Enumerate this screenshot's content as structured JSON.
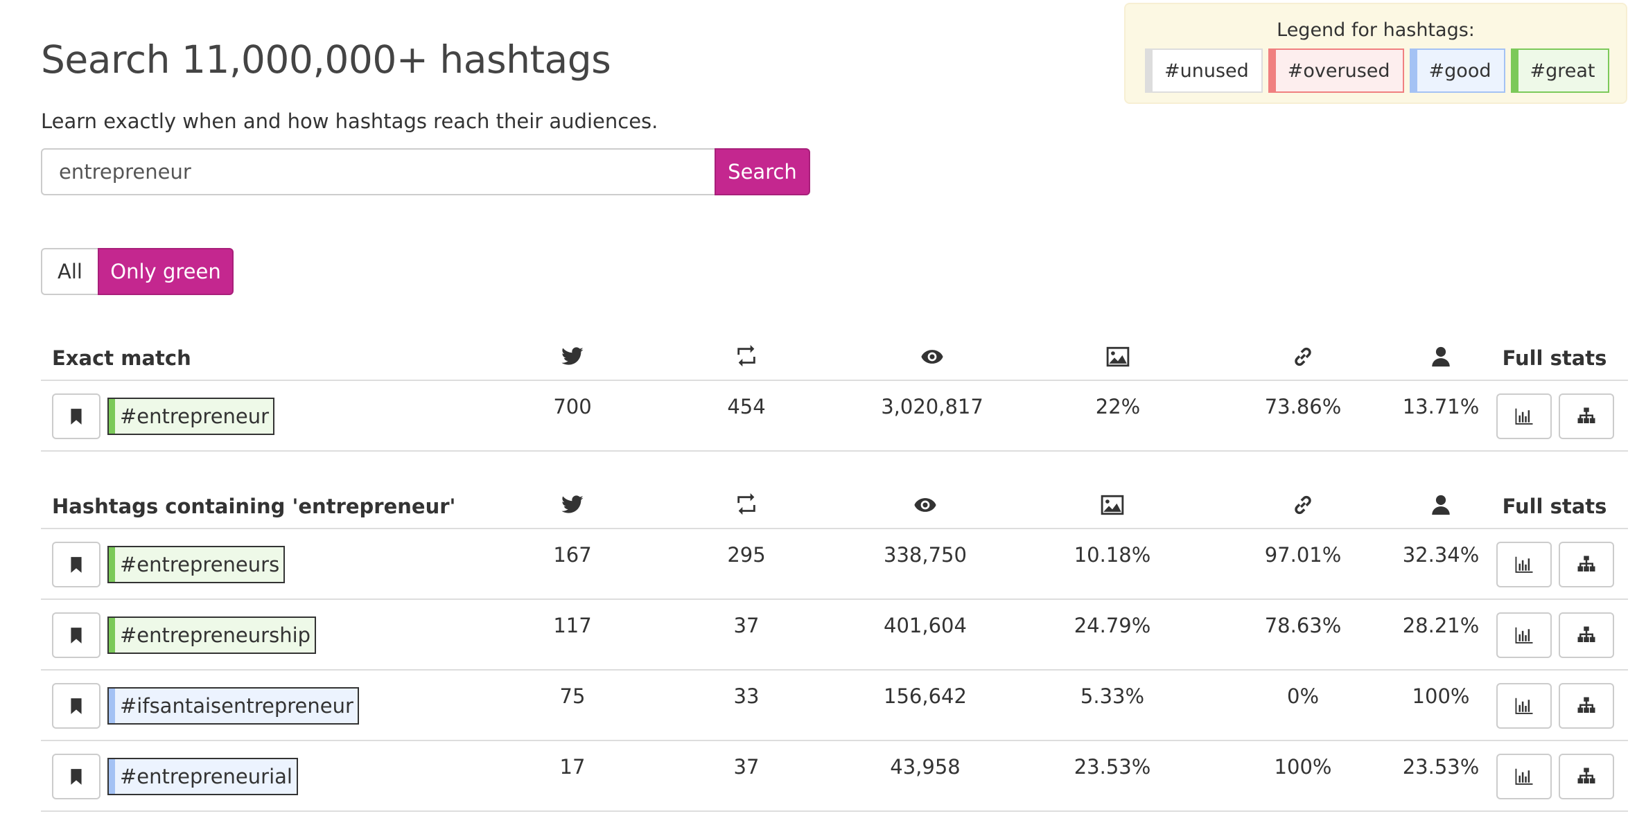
{
  "header": {
    "title": "Search 11,000,000+ hashtags",
    "subtitle": "Learn exactly when and how hashtags reach their audiences."
  },
  "search": {
    "value": "entrepreneur",
    "button_label": "Search"
  },
  "filters": {
    "all_label": "All",
    "green_label": "Only green",
    "active": "Only green"
  },
  "legend": {
    "title": "Legend for hashtags:",
    "items": [
      {
        "label": "#unused",
        "status": "unused"
      },
      {
        "label": "#overused",
        "status": "overused"
      },
      {
        "label": "#good",
        "status": "good"
      },
      {
        "label": "#great",
        "status": "great"
      }
    ]
  },
  "colors": {
    "accent": "#c4278f",
    "unused": "#dddddd",
    "overused": "#f08080",
    "good": "#a4c2f4",
    "great": "#7cc95a"
  },
  "columns": {
    "icons": [
      "twitter-icon",
      "retweet-icon",
      "eye-icon",
      "image-icon",
      "link-icon",
      "user-icon"
    ],
    "full_stats": "Full stats"
  },
  "exact_match": {
    "title": "Exact match",
    "rows": [
      {
        "hashtag": "#entrepreneur",
        "status": "great",
        "tweets": "700",
        "retweets": "454",
        "exposure": "3,020,817",
        "images": "22%",
        "links": "73.86%",
        "mentions": "13.71%"
      }
    ]
  },
  "containing": {
    "title": "Hashtags containing 'entrepreneur'",
    "rows": [
      {
        "hashtag": "#entrepreneurs",
        "status": "great",
        "tweets": "167",
        "retweets": "295",
        "exposure": "338,750",
        "images": "10.18%",
        "links": "97.01%",
        "mentions": "32.34%"
      },
      {
        "hashtag": "#entrepreneurship",
        "status": "great",
        "tweets": "117",
        "retweets": "37",
        "exposure": "401,604",
        "images": "24.79%",
        "links": "78.63%",
        "mentions": "28.21%"
      },
      {
        "hashtag": "#ifsantaisentrepreneur",
        "status": "good",
        "tweets": "75",
        "retweets": "33",
        "exposure": "156,642",
        "images": "5.33%",
        "links": "0%",
        "mentions": "100%"
      },
      {
        "hashtag": "#entrepreneurial",
        "status": "good",
        "tweets": "17",
        "retweets": "37",
        "exposure": "43,958",
        "images": "23.53%",
        "links": "100%",
        "mentions": "23.53%"
      }
    ]
  }
}
